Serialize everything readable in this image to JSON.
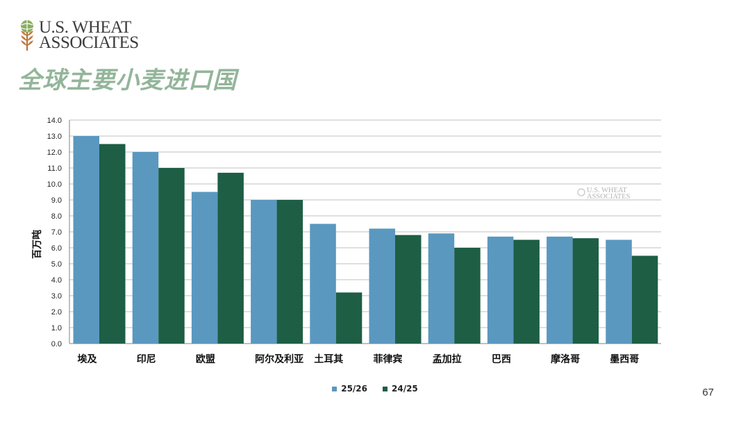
{
  "logo": {
    "line1": "U.S. WHEAT",
    "line2": "ASSOCIATES"
  },
  "slide_title": "全球主要小麦进口国",
  "page_number": "67",
  "colors": {
    "series_25_26": "#5a98c0",
    "series_24_25": "#1d5e45",
    "title": "#93b59a",
    "grid": "#bfbfbf"
  },
  "chart_data": {
    "type": "bar",
    "title": "",
    "xlabel": "",
    "ylabel": "百万吨",
    "ylim": [
      0,
      14
    ],
    "yticks": [
      "0.0",
      "1.0",
      "2.0",
      "3.0",
      "4.0",
      "5.0",
      "6.0",
      "7.0",
      "8.0",
      "9.0",
      "10.0",
      "11.0",
      "12.0",
      "13.0",
      "14.0"
    ],
    "grid": true,
    "legend_position": "bottom",
    "categories": [
      "埃及",
      "印尼",
      "欧盟",
      "阿尔及利亚",
      "土耳其",
      "菲律宾",
      "孟加拉",
      "巴西",
      "摩洛哥",
      "墨西哥"
    ],
    "series": [
      {
        "name": "25/26",
        "values": [
          13.0,
          12.0,
          9.5,
          9.0,
          7.5,
          7.2,
          6.9,
          6.7,
          6.7,
          6.5
        ]
      },
      {
        "name": "24/25",
        "values": [
          12.5,
          11.0,
          10.7,
          9.0,
          3.2,
          6.8,
          6.0,
          6.5,
          6.6,
          5.5
        ]
      }
    ],
    "watermark": {
      "line1": "U.S. WHEAT",
      "line2": "ASSOCIATES"
    }
  }
}
